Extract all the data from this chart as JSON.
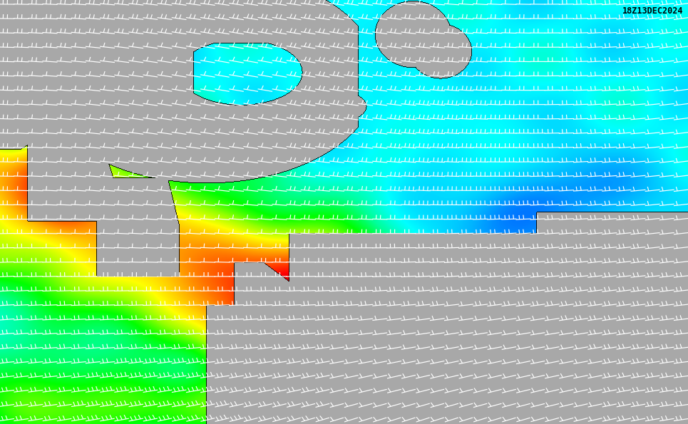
{
  "timestamp": "18Z13DEC2024",
  "figsize": [
    9.65,
    5.95
  ],
  "dpi": 100,
  "background_color": "#000000",
  "land_color_main": "#a8a8a8",
  "land_color_shaded": "#b8b8b8",
  "wind_barb_color": "#ffffff",
  "coast_color": "#000000",
  "timestamp_color": "#000000",
  "colormap_colors": [
    [
      0.0,
      "#00008b"
    ],
    [
      0.07,
      "#0000ff"
    ],
    [
      0.14,
      "#005aff"
    ],
    [
      0.21,
      "#00b4ff"
    ],
    [
      0.28,
      "#00ffff"
    ],
    [
      0.35,
      "#00ff96"
    ],
    [
      0.42,
      "#00ff00"
    ],
    [
      0.49,
      "#96ff00"
    ],
    [
      0.56,
      "#ffff00"
    ],
    [
      0.63,
      "#ffbe00"
    ],
    [
      0.7,
      "#ff7800"
    ],
    [
      0.77,
      "#ff3c00"
    ],
    [
      0.84,
      "#ff0000"
    ],
    [
      0.91,
      "#c80000"
    ],
    [
      1.0,
      "#960000"
    ]
  ]
}
